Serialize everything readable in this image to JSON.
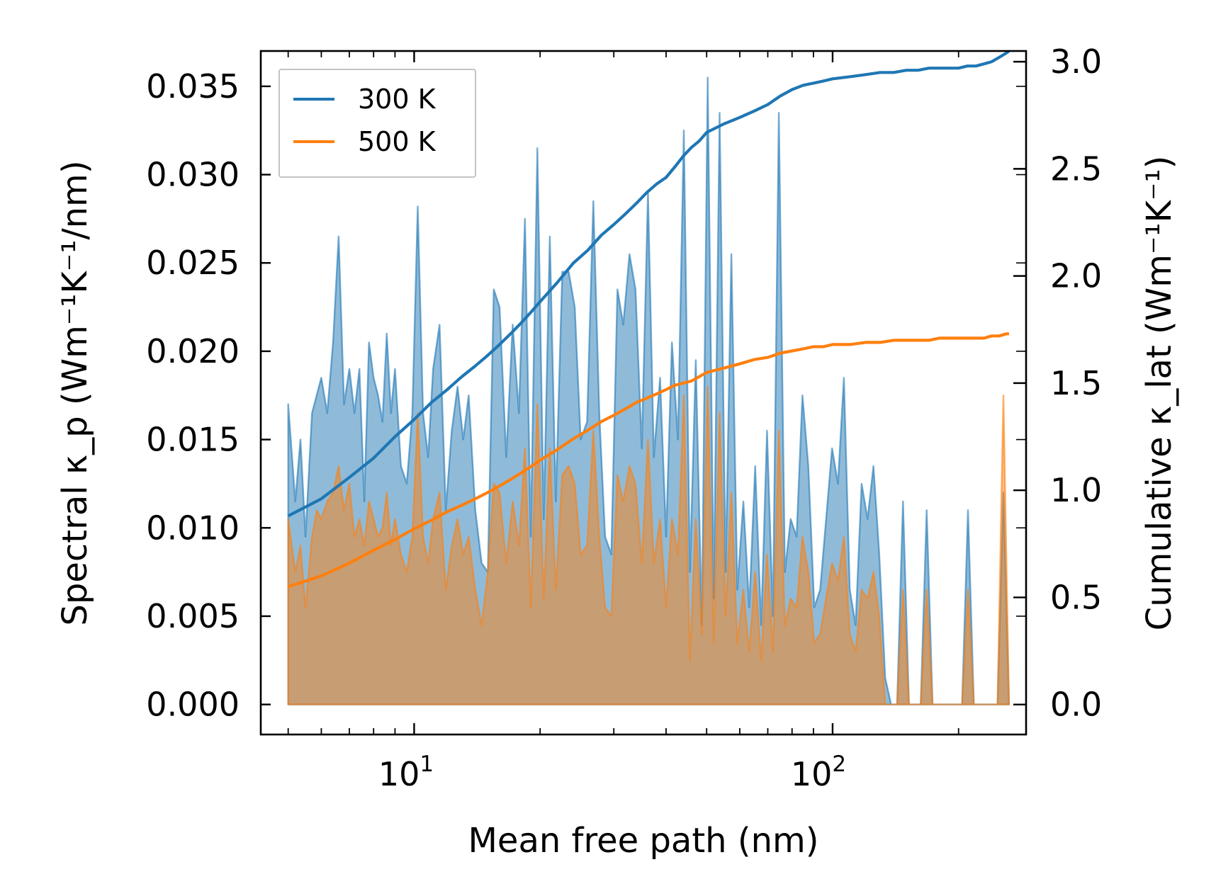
{
  "chart_data": {
    "type": "area",
    "xlabel": "Mean free path (nm)",
    "ylabel": "Spectral κ_p (Wm⁻¹K⁻¹/nm)",
    "ylabel_right": "Cumulative κ_lat (Wm⁻¹K⁻¹)",
    "xscale": "log",
    "xlim": [
      4.3,
      290
    ],
    "ylim": [
      -0.0017,
      0.037
    ],
    "ylim_right": [
      -0.14,
      3.05
    ],
    "x_ticks": [
      {
        "value": 10,
        "base": "10",
        "exp": "1"
      },
      {
        "value": 100,
        "base": "10",
        "exp": "2"
      }
    ],
    "y_ticks": [
      "0.000",
      "0.005",
      "0.010",
      "0.015",
      "0.020",
      "0.025",
      "0.030",
      "0.035"
    ],
    "y_ticks_right": [
      "0.0",
      "0.5",
      "1.0",
      "1.5",
      "2.0",
      "2.5",
      "3.0"
    ],
    "legend": {
      "position": "top-left",
      "entries": [
        {
          "label": "300 K",
          "color": "#1f77b4"
        },
        {
          "label": "500 K",
          "color": "#ff7f0e"
        }
      ]
    },
    "series": [
      {
        "name": "300 K",
        "color": "#1f77b4",
        "spectral_x": [
          5.0,
          5.2,
          5.35,
          5.5,
          5.7,
          5.85,
          6.0,
          6.2,
          6.4,
          6.6,
          6.8,
          7.0,
          7.2,
          7.4,
          7.6,
          7.8,
          8.0,
          8.2,
          8.4,
          8.6,
          8.8,
          9.0,
          9.3,
          9.6,
          9.9,
          10.2,
          10.5,
          10.8,
          11.1,
          11.5,
          11.9,
          12.3,
          12.7,
          13.1,
          13.5,
          14.0,
          14.5,
          15.0,
          15.5,
          16.0,
          16.6,
          17.2,
          17.8,
          18.4,
          19.0,
          19.7,
          20.4,
          21.1,
          21.8,
          22.6,
          23.4,
          24.2,
          25.0,
          25.9,
          26.8,
          27.7,
          28.6,
          29.6,
          30.6,
          31.6,
          32.7,
          33.8,
          35.0,
          36.2,
          37.4,
          38.7,
          40.0,
          41.3,
          42.7,
          44.1,
          45.6,
          47.1,
          48.7,
          50.3,
          52.0,
          53.7,
          55.5,
          57.3,
          59.2,
          61.2,
          63.2,
          65.3,
          67.5,
          69.7,
          72.0,
          74.4,
          76.9,
          79.4,
          82.0,
          84.7,
          87.5,
          90.4,
          93.4,
          96.5,
          99.7,
          103,
          106.4,
          109.9,
          113.5,
          117.3,
          121.2,
          125.2,
          129.3,
          133.6,
          138,
          142.6,
          147.3,
          152.2,
          157.2,
          162.4,
          167.8,
          173.3,
          179,
          185,
          191.1,
          197.4,
          203.9,
          210.6,
          217.6,
          224.8,
          232.2,
          239.9,
          247.8,
          256,
          264
        ],
        "spectral_y": [
          0.017,
          0.0115,
          0.015,
          0.0095,
          0.0165,
          0.0175,
          0.0185,
          0.0165,
          0.0205,
          0.0265,
          0.017,
          0.019,
          0.0165,
          0.019,
          0.0115,
          0.0205,
          0.0185,
          0.0175,
          0.016,
          0.021,
          0.0165,
          0.019,
          0.0135,
          0.0125,
          0.0165,
          0.0282,
          0.0165,
          0.014,
          0.019,
          0.0215,
          0.011,
          0.0155,
          0.018,
          0.015,
          0.0175,
          0.011,
          0.008,
          0.0075,
          0.0235,
          0.0225,
          0.014,
          0.0215,
          0.0165,
          0.0275,
          0.0095,
          0.0315,
          0.0105,
          0.0265,
          0.0115,
          0.0245,
          0.0245,
          0.0225,
          0.015,
          0.016,
          0.0285,
          0.0165,
          0.0095,
          0.0085,
          0.0235,
          0.0215,
          0.0255,
          0.0235,
          0.0145,
          0.029,
          0.014,
          0.0185,
          0.0095,
          0.0205,
          0.015,
          0.0325,
          0.0075,
          0.0195,
          0.0045,
          0.0355,
          0.006,
          0.0335,
          0.0075,
          0.0255,
          0.0065,
          0.0115,
          0.0055,
          0.0135,
          0.0045,
          0.0155,
          0.005,
          0.0335,
          0.0075,
          0.0105,
          0.0095,
          0.0175,
          0.0135,
          0.0055,
          0.0065,
          0.0105,
          0.0145,
          0.0125,
          0.0185,
          0.0065,
          0.0045,
          0.0125,
          0.0105,
          0.0135,
          0.0085,
          0.0015,
          0.0,
          0.0,
          0.0115,
          0.0,
          0.0,
          0.0,
          0.011,
          0.0,
          0.0,
          0.0,
          0.0,
          0.0,
          0.0,
          0.011,
          0.0,
          0.0,
          0.0,
          0.0,
          0.0,
          0.012,
          0.0,
          0.0
        ],
        "cumulative_x": [
          5.0,
          6.0,
          7.0,
          8.0,
          9.0,
          10.0,
          11.0,
          12.0,
          13.0,
          14.0,
          15.0,
          16.0,
          17.0,
          18.0,
          19.0,
          20.0,
          22.0,
          24.0,
          26.0,
          28.0,
          30.0,
          32.0,
          34.0,
          36.0,
          38.0,
          40.0,
          42.0,
          44.0,
          46.0,
          48.0,
          50.0,
          55.0,
          60.0,
          65.0,
          70.0,
          75.0,
          80.0,
          85.0,
          90.0,
          95.0,
          100.0,
          110.0,
          120.0,
          130.0,
          140.0,
          150.0,
          160.0,
          170.0,
          180.0,
          190.0,
          200.0,
          210.0,
          220.0,
          230.0,
          240.0,
          250.0,
          260.0,
          264.0
        ],
        "cumulative_y": [
          0.88,
          0.96,
          1.06,
          1.15,
          1.25,
          1.33,
          1.41,
          1.47,
          1.53,
          1.58,
          1.63,
          1.68,
          1.73,
          1.78,
          1.83,
          1.88,
          1.97,
          2.06,
          2.12,
          2.19,
          2.24,
          2.29,
          2.34,
          2.39,
          2.43,
          2.46,
          2.51,
          2.56,
          2.6,
          2.63,
          2.67,
          2.71,
          2.74,
          2.77,
          2.8,
          2.84,
          2.87,
          2.89,
          2.9,
          2.91,
          2.92,
          2.93,
          2.94,
          2.95,
          2.95,
          2.96,
          2.96,
          2.97,
          2.97,
          2.97,
          2.97,
          2.98,
          2.98,
          2.99,
          3.0,
          3.02,
          3.04,
          3.05
        ]
      },
      {
        "name": "500 K",
        "color": "#ff7f0e",
        "spectral_x": [
          5.0,
          5.2,
          5.35,
          5.5,
          5.7,
          5.85,
          6.0,
          6.2,
          6.4,
          6.6,
          6.8,
          7.0,
          7.2,
          7.4,
          7.6,
          7.8,
          8.0,
          8.2,
          8.4,
          8.6,
          8.8,
          9.0,
          9.3,
          9.6,
          9.9,
          10.2,
          10.5,
          10.8,
          11.1,
          11.5,
          11.9,
          12.3,
          12.7,
          13.1,
          13.5,
          14.0,
          14.5,
          15.0,
          15.5,
          16.0,
          16.6,
          17.2,
          17.8,
          18.4,
          19.0,
          19.7,
          20.4,
          21.1,
          21.8,
          22.6,
          23.4,
          24.2,
          25.0,
          25.9,
          26.8,
          27.7,
          28.6,
          29.6,
          30.6,
          31.6,
          32.7,
          33.8,
          35.0,
          36.2,
          37.4,
          38.7,
          40.0,
          41.3,
          42.7,
          44.1,
          45.6,
          47.1,
          48.7,
          50.3,
          52.0,
          53.7,
          55.5,
          57.3,
          59.2,
          61.2,
          63.2,
          65.3,
          67.5,
          69.7,
          72.0,
          74.4,
          76.9,
          79.4,
          82.0,
          84.7,
          87.5,
          90.4,
          93.4,
          96.5,
          99.7,
          103,
          106.4,
          109.9,
          113.5,
          117.3,
          121.2,
          125.2,
          129.3,
          133.6,
          138,
          142.6,
          147.3,
          152.2,
          157.2,
          162.4,
          167.8,
          173.3,
          179,
          185,
          191.1,
          197.4,
          203.9,
          210.6,
          217.6,
          224.8,
          232.2,
          239.9,
          247.8,
          256,
          264
        ],
        "spectral_y": [
          0.0105,
          0.0075,
          0.009,
          0.0055,
          0.0095,
          0.011,
          0.0105,
          0.0115,
          0.012,
          0.0135,
          0.011,
          0.0125,
          0.0095,
          0.0105,
          0.009,
          0.0115,
          0.0105,
          0.0095,
          0.01,
          0.012,
          0.009,
          0.0105,
          0.0085,
          0.0075,
          0.0095,
          0.0165,
          0.0095,
          0.008,
          0.0105,
          0.012,
          0.0065,
          0.009,
          0.0105,
          0.0085,
          0.0095,
          0.0065,
          0.0045,
          0.0075,
          0.0125,
          0.012,
          0.008,
          0.0115,
          0.009,
          0.0145,
          0.0055,
          0.017,
          0.006,
          0.0145,
          0.0065,
          0.013,
          0.0135,
          0.0125,
          0.0085,
          0.009,
          0.0155,
          0.0095,
          0.0055,
          0.005,
          0.013,
          0.0115,
          0.0135,
          0.0125,
          0.008,
          0.015,
          0.008,
          0.0105,
          0.0055,
          0.0105,
          0.0085,
          0.0175,
          0.0025,
          0.0105,
          0.004,
          0.018,
          0.0035,
          0.0165,
          0.005,
          0.012,
          0.0035,
          0.0065,
          0.003,
          0.0075,
          0.0025,
          0.0085,
          0.003,
          0.0155,
          0.0045,
          0.006,
          0.0055,
          0.0095,
          0.0075,
          0.0035,
          0.004,
          0.006,
          0.008,
          0.007,
          0.0095,
          0.004,
          0.003,
          0.0065,
          0.006,
          0.0075,
          0.005,
          0.0,
          0.0,
          0.0,
          0.0065,
          0.0,
          0.0,
          0.0,
          0.0065,
          0.0,
          0.0,
          0.0,
          0.0,
          0.0,
          0.0,
          0.0065,
          0.0,
          0.0,
          0.0,
          0.0,
          0.0,
          0.0175,
          0.0,
          0.0
        ],
        "cumulative_x": [
          5.0,
          6.0,
          7.0,
          8.0,
          9.0,
          10.0,
          11.0,
          12.0,
          13.0,
          14.0,
          15.0,
          16.0,
          17.0,
          18.0,
          19.0,
          20.0,
          22.0,
          24.0,
          26.0,
          28.0,
          30.0,
          32.0,
          34.0,
          36.0,
          38.0,
          40.0,
          42.0,
          44.0,
          46.0,
          48.0,
          50.0,
          55.0,
          60.0,
          65.0,
          70.0,
          75.0,
          80.0,
          85.0,
          90.0,
          95.0,
          100.0,
          110.0,
          120.0,
          130.0,
          140.0,
          150.0,
          160.0,
          170.0,
          180.0,
          190.0,
          200.0,
          210.0,
          220.0,
          230.0,
          240.0,
          250.0,
          260.0,
          264.0
        ],
        "cumulative_y": [
          0.55,
          0.6,
          0.66,
          0.72,
          0.77,
          0.82,
          0.86,
          0.9,
          0.93,
          0.96,
          0.99,
          1.02,
          1.05,
          1.08,
          1.11,
          1.14,
          1.19,
          1.24,
          1.28,
          1.32,
          1.35,
          1.38,
          1.41,
          1.43,
          1.45,
          1.47,
          1.49,
          1.5,
          1.51,
          1.53,
          1.55,
          1.57,
          1.59,
          1.61,
          1.62,
          1.64,
          1.65,
          1.66,
          1.67,
          1.67,
          1.68,
          1.68,
          1.69,
          1.69,
          1.7,
          1.7,
          1.7,
          1.7,
          1.71,
          1.71,
          1.71,
          1.71,
          1.71,
          1.71,
          1.72,
          1.72,
          1.73,
          1.73
        ]
      }
    ]
  }
}
